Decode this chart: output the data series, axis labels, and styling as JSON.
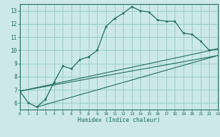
{
  "title": "",
  "xlabel": "Humidex (Indice chaleur)",
  "ylabel": "",
  "xlim": [
    0,
    23
  ],
  "ylim": [
    5.5,
    13.5
  ],
  "xticks": [
    0,
    1,
    2,
    3,
    4,
    5,
    6,
    7,
    8,
    9,
    10,
    11,
    12,
    13,
    14,
    15,
    16,
    17,
    18,
    19,
    20,
    21,
    22,
    23
  ],
  "yticks": [
    6,
    7,
    8,
    9,
    10,
    11,
    12,
    13
  ],
  "bg_color": "#cce8e8",
  "grid_color": "#99cccc",
  "line_color": "#1a6b5a",
  "main_data": [
    [
      0,
      6.9
    ],
    [
      1,
      6.0
    ],
    [
      2,
      5.7
    ],
    [
      3,
      6.3
    ],
    [
      4,
      7.6
    ],
    [
      5,
      8.8
    ],
    [
      6,
      8.6
    ],
    [
      7,
      9.3
    ],
    [
      8,
      9.5
    ],
    [
      9,
      10.0
    ],
    [
      10,
      11.8
    ],
    [
      11,
      12.4
    ],
    [
      12,
      12.8
    ],
    [
      13,
      13.3
    ],
    [
      14,
      13.0
    ],
    [
      15,
      12.9
    ],
    [
      16,
      12.3
    ],
    [
      17,
      12.2
    ],
    [
      18,
      12.2
    ],
    [
      19,
      11.3
    ],
    [
      20,
      11.2
    ],
    [
      21,
      10.7
    ],
    [
      22,
      10.0
    ],
    [
      23,
      10.1
    ]
  ],
  "line1_data": [
    [
      0,
      6.9
    ],
    [
      23,
      10.1
    ]
  ],
  "line2_data": [
    [
      0,
      6.9
    ],
    [
      23,
      9.6
    ]
  ],
  "line3_data": [
    [
      2,
      5.7
    ],
    [
      23,
      9.6
    ]
  ]
}
